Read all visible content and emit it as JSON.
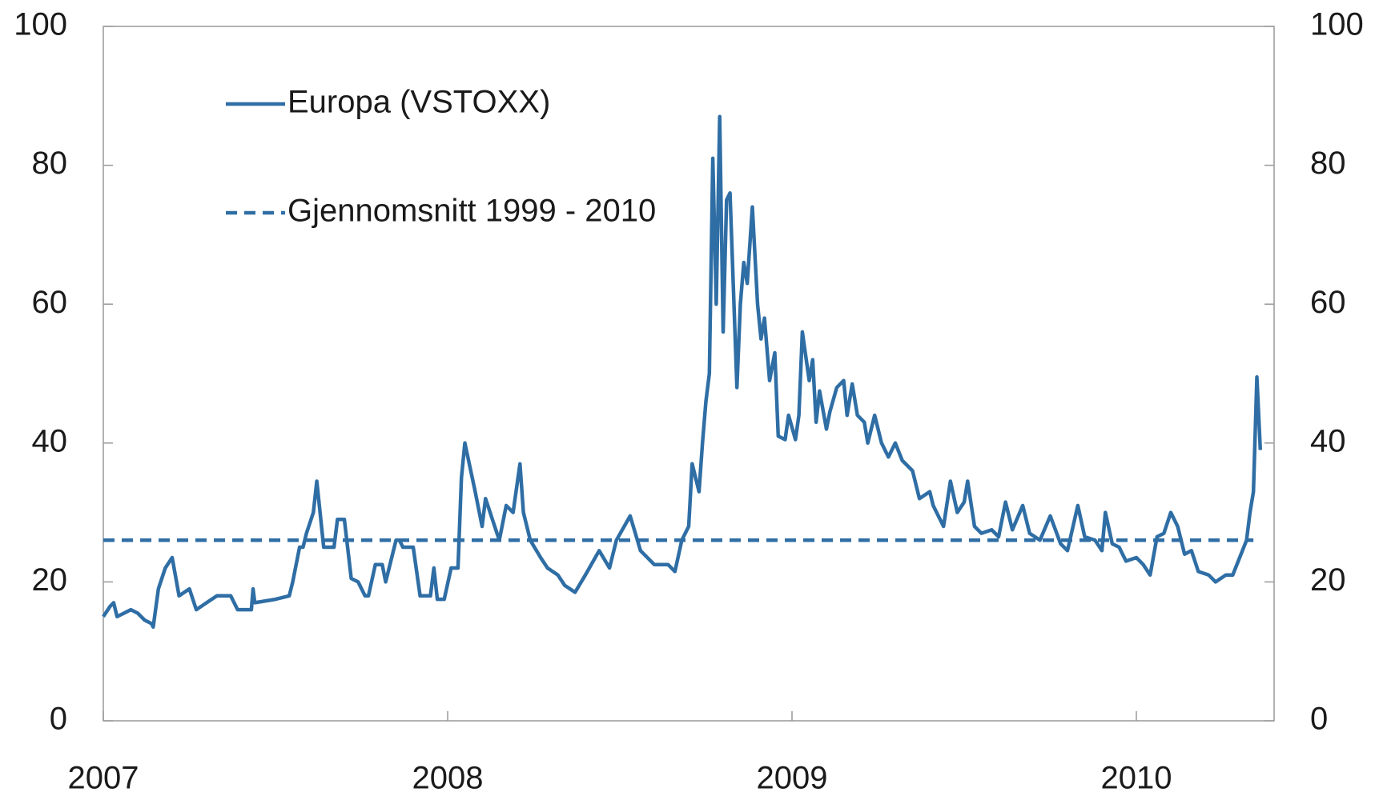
{
  "chart_data": {
    "type": "line",
    "xlim": [
      2007,
      2010.4
    ],
    "xticks": [
      2007,
      2008,
      2009,
      2010
    ],
    "ylim": [
      0,
      100
    ],
    "yticks": [
      0,
      20,
      40,
      60,
      80,
      100
    ],
    "y2lim": [
      0,
      100
    ],
    "y2ticks": [
      0,
      20,
      40,
      60,
      80,
      100
    ],
    "legend": "upper-left",
    "series": [
      {
        "name": "Europa (VSTOXX)",
        "color": "#2f6ea5",
        "dash": false,
        "x": [
          2007.0,
          2007.02,
          2007.03,
          2007.04,
          2007.06,
          2007.08,
          2007.1,
          2007.12,
          2007.14,
          2007.145,
          2007.16,
          2007.18,
          2007.2,
          2007.22,
          2007.25,
          2007.27,
          2007.3,
          2007.33,
          2007.37,
          2007.39,
          2007.43,
          2007.435,
          2007.44,
          2007.5,
          2007.54,
          2007.55,
          2007.57,
          2007.58,
          2007.59,
          2007.61,
          2007.62,
          2007.64,
          2007.67,
          2007.68,
          2007.7,
          2007.72,
          2007.74,
          2007.76,
          2007.77,
          2007.79,
          2007.81,
          2007.82,
          2007.85,
          2007.86,
          2007.87,
          2007.9,
          2007.92,
          2007.95,
          2007.96,
          2007.97,
          2007.99,
          2008.01,
          2008.03,
          2008.04,
          2008.05,
          2008.08,
          2008.1,
          2008.11,
          2008.13,
          2008.15,
          2008.17,
          2008.19,
          2008.21,
          2008.22,
          2008.24,
          2008.27,
          2008.29,
          2008.32,
          2008.34,
          2008.37,
          2008.4,
          2008.44,
          2008.47,
          2008.49,
          2008.53,
          2008.56,
          2008.6,
          2008.64,
          2008.66,
          2008.68,
          2008.7,
          2008.71,
          2008.73,
          2008.74,
          2008.75,
          2008.76,
          2008.77,
          2008.78,
          2008.79,
          2008.8,
          2008.81,
          2008.82,
          2008.83,
          2008.84,
          2008.85,
          2008.86,
          2008.87,
          2008.885,
          2008.9,
          2008.91,
          2008.92,
          2008.935,
          2008.95,
          2008.96,
          2008.98,
          2008.99,
          2009.01,
          2009.02,
          2009.03,
          2009.05,
          2009.06,
          2009.07,
          2009.08,
          2009.1,
          2009.11,
          2009.13,
          2009.15,
          2009.16,
          2009.175,
          2009.19,
          2009.21,
          2009.22,
          2009.24,
          2009.26,
          2009.28,
          2009.3,
          2009.32,
          2009.35,
          2009.37,
          2009.4,
          2009.41,
          2009.44,
          2009.46,
          2009.48,
          2009.5,
          2009.51,
          2009.53,
          2009.55,
          2009.58,
          2009.6,
          2009.62,
          2009.64,
          2009.67,
          2009.69,
          2009.72,
          2009.75,
          2009.78,
          2009.8,
          2009.83,
          2009.85,
          2009.88,
          2009.9,
          2009.91,
          2009.93,
          2009.95,
          2009.97,
          2010.0,
          2010.02,
          2010.04,
          2010.06,
          2010.08,
          2010.1,
          2010.12,
          2010.14,
          2010.16,
          2010.18,
          2010.21,
          2010.23,
          2010.26,
          2010.28,
          2010.3,
          2010.32,
          2010.33,
          2010.34,
          2010.35,
          2010.36
        ],
        "values": [
          15,
          16.5,
          17,
          15,
          15.5,
          16,
          15.5,
          14.5,
          14,
          13.5,
          19,
          22,
          23.5,
          18,
          19,
          16,
          17,
          18,
          18,
          16,
          16,
          19,
          17,
          17.5,
          18,
          20,
          25,
          25,
          27,
          30,
          34.5,
          25,
          25,
          29,
          29,
          20.5,
          20,
          18,
          18,
          22.5,
          22.5,
          20,
          26,
          26,
          25,
          25,
          18,
          18,
          22,
          17.5,
          17.5,
          22,
          22,
          35,
          40,
          33,
          28,
          32,
          29,
          26,
          31,
          30,
          37,
          30,
          26,
          23.5,
          22,
          21,
          19.5,
          18.5,
          21,
          24.5,
          22,
          26,
          29.5,
          24.5,
          22.5,
          22.5,
          21.5,
          26,
          28,
          37,
          33,
          40,
          46,
          50,
          81,
          60,
          87,
          56,
          75,
          76,
          62,
          48,
          60,
          66,
          63,
          74,
          60,
          55,
          58,
          49,
          53,
          41,
          40.5,
          44,
          40.5,
          44,
          56,
          49,
          52,
          43,
          47.5,
          42,
          44.5,
          48,
          49,
          44,
          48.5,
          44,
          43,
          40,
          44,
          40,
          38,
          40,
          37.5,
          36,
          32,
          33,
          31,
          28,
          34.5,
          30,
          31.5,
          34.5,
          28,
          27,
          27.5,
          26.5,
          31.5,
          27.5,
          31,
          27,
          26,
          29.5,
          25.5,
          24.5,
          31,
          26.5,
          26,
          24.5,
          30,
          25.5,
          25,
          23,
          23.5,
          22.5,
          21,
          26.5,
          27,
          30,
          28,
          24,
          24.5,
          21.5,
          21,
          20,
          21,
          21,
          23.5,
          26,
          30,
          33,
          49.5,
          39
        ]
      },
      {
        "name": "Gjennomsnitt 1999 - 2010",
        "color": "#2f6ea5",
        "dash": true,
        "x": [
          2007.0,
          2010.34
        ],
        "values": [
          26,
          26
        ]
      }
    ]
  }
}
